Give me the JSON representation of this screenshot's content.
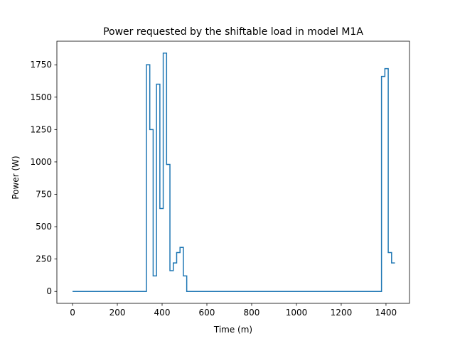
{
  "chart_data": {
    "type": "line",
    "title": "Power requested by the shiftable load in model M1A",
    "xlabel": "Time (m)",
    "ylabel": "Power (W)",
    "xlim": [
      -70,
      1505
    ],
    "ylim": [
      -92,
      1932
    ],
    "xticks": [
      0,
      200,
      400,
      600,
      800,
      1000,
      1200,
      1400
    ],
    "yticks": [
      0,
      250,
      500,
      750,
      1000,
      1250,
      1500,
      1750
    ],
    "grid": false,
    "line_style": "step",
    "series": [
      {
        "color": "#1f77b4",
        "x": [
          0,
          330,
          330,
          345,
          345,
          360,
          360,
          375,
          375,
          390,
          390,
          405,
          405,
          420,
          420,
          435,
          435,
          450,
          450,
          465,
          465,
          480,
          480,
          495,
          495,
          510,
          510,
          1380,
          1380,
          1395,
          1395,
          1410,
          1410,
          1425,
          1425,
          1440
        ],
        "y": [
          0,
          0,
          1750,
          1750,
          1250,
          1250,
          120,
          120,
          1600,
          1600,
          640,
          640,
          1840,
          1840,
          980,
          980,
          160,
          160,
          220,
          220,
          300,
          300,
          340,
          340,
          120,
          120,
          0,
          0,
          1660,
          1660,
          1720,
          1720,
          300,
          300,
          220,
          220
        ]
      }
    ]
  }
}
